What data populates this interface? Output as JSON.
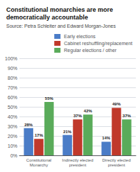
{
  "chart_data": {
    "type": "bar",
    "title": "Constitutional monarchies are more\ndemocratically accountable",
    "subtitle": "Source: Petra Schleiter and Edward Morgan-Jones",
    "categories": [
      "Constitutional\nMonarchy",
      "Indirectly elected\npresident",
      "Directly elected\npresident"
    ],
    "series": [
      {
        "name": "Early elections",
        "color": "#4a7cc7",
        "values": [
          28,
          21,
          14
        ],
        "value_labels": [
          "28%",
          "21%",
          "14%"
        ]
      },
      {
        "name": "Cabinet reshuffling/replacement",
        "color": "#c0392b",
        "values": [
          17,
          37,
          49
        ],
        "value_labels": [
          "17%",
          "37%",
          "49%"
        ]
      },
      {
        "name": "Regular elections / other",
        "color": "#5aab5a",
        "values": [
          55,
          42,
          37
        ],
        "value_labels": [
          "55%",
          "42%",
          "37%"
        ]
      }
    ],
    "ylim": [
      0,
      100
    ],
    "yticks": [
      {
        "value": 0,
        "label": "0%"
      },
      {
        "value": 10,
        "label": "10%"
      },
      {
        "value": 20,
        "label": "20%"
      },
      {
        "value": 30,
        "label": "30%"
      },
      {
        "value": 40,
        "label": "40%"
      },
      {
        "value": 50,
        "label": "50%"
      },
      {
        "value": 60,
        "label": "60%"
      },
      {
        "value": 70,
        "label": "70%"
      },
      {
        "value": 80,
        "label": "80%"
      },
      {
        "value": 90,
        "label": "90%"
      },
      {
        "value": 100,
        "label": "100%"
      }
    ],
    "grid": true,
    "legend": "upper right",
    "data_labels": true
  }
}
